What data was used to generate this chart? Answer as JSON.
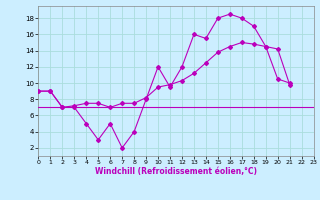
{
  "xlabel": "Windchill (Refroidissement éolien,°C)",
  "background_color": "#cceeff",
  "grid_color": "#aadddd",
  "line_color": "#bb00bb",
  "x_ticks": [
    0,
    1,
    2,
    3,
    4,
    5,
    6,
    7,
    8,
    9,
    10,
    11,
    12,
    13,
    14,
    15,
    16,
    17,
    18,
    19,
    20,
    21,
    22,
    23
  ],
  "y_ticks": [
    2,
    4,
    6,
    8,
    10,
    12,
    14,
    16,
    18
  ],
  "xlim": [
    0,
    23
  ],
  "ylim": [
    1,
    19.5
  ],
  "series1_x": [
    0,
    1,
    2,
    3,
    4,
    5,
    6,
    7,
    8,
    9,
    10,
    11,
    12,
    13,
    14,
    15,
    16,
    17,
    18,
    19,
    20,
    21
  ],
  "series1_y": [
    9,
    9,
    7,
    7,
    5,
    3,
    5,
    2,
    4,
    8,
    12,
    9.5,
    12,
    16,
    15.5,
    18,
    18.5,
    18,
    17,
    14.5,
    10.5,
    10
  ],
  "series2_x": [
    0,
    1,
    2,
    3,
    4,
    5,
    6,
    7,
    8,
    9,
    10,
    11,
    12,
    13,
    14,
    15,
    16,
    17,
    18,
    19,
    20,
    21,
    22,
    23
  ],
  "series2_y": [
    9,
    9,
    7,
    7.2,
    7.5,
    7.5,
    7,
    7.5,
    7.5,
    8.2,
    9.5,
    9.8,
    10.3,
    11.2,
    12.5,
    13.8,
    14.5,
    15,
    14.8,
    14.5,
    14.2,
    9.8,
    null,
    null
  ],
  "series3_x": [
    0,
    23
  ],
  "series3_y": [
    7,
    7
  ]
}
